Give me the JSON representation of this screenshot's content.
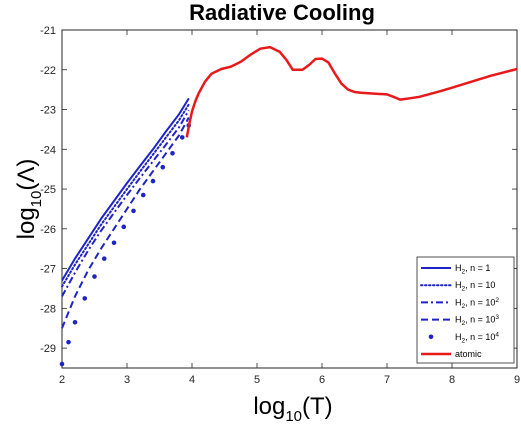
{
  "chart_data": {
    "type": "line",
    "title": "Radiative Cooling",
    "xlabel": {
      "prefix": "log",
      "sub": "10",
      "arg": "(T)"
    },
    "ylabel": {
      "prefix": "log",
      "sub": "10",
      "arg": "(Λ)"
    },
    "xlim": [
      2,
      9
    ],
    "ylim": [
      -29.5,
      -21
    ],
    "xticks": [
      2,
      3,
      4,
      5,
      6,
      7,
      8,
      9
    ],
    "yticks": [
      -21,
      -22,
      -23,
      -24,
      -25,
      -26,
      -27,
      -28,
      -29
    ],
    "grid": false,
    "legend_position": "bottom-right",
    "colors": {
      "h2": "#1f24c7",
      "atomic": "#e8191b",
      "axis": "#262626"
    },
    "series": [
      {
        "label": {
          "base": "H",
          "sub": "2",
          "text": ", n = 1",
          "sup": ""
        },
        "style": "solid",
        "color": "#1f24c7",
        "x": [
          2.0,
          2.2,
          2.4,
          2.6,
          2.8,
          3.0,
          3.2,
          3.4,
          3.6,
          3.8,
          3.95
        ],
        "y": [
          -27.3,
          -26.75,
          -26.25,
          -25.75,
          -25.3,
          -24.85,
          -24.42,
          -24.0,
          -23.55,
          -23.12,
          -22.72
        ]
      },
      {
        "label": {
          "base": "H",
          "sub": "2",
          "text": ", n = 10",
          "sup": ""
        },
        "style": "dotted",
        "color": "#1f24c7",
        "x": [
          2.0,
          2.2,
          2.4,
          2.6,
          2.8,
          3.0,
          3.2,
          3.4,
          3.6,
          3.8,
          3.95
        ],
        "y": [
          -27.45,
          -26.9,
          -26.4,
          -25.9,
          -25.45,
          -25.0,
          -24.56,
          -24.13,
          -23.7,
          -23.27,
          -22.87
        ]
      },
      {
        "label": {
          "base": "H",
          "sub": "2",
          "text": ", n = 10",
          "sup": "2"
        },
        "style": "dashdot",
        "color": "#1f24c7",
        "x": [
          2.0,
          2.2,
          2.4,
          2.6,
          2.8,
          3.0,
          3.2,
          3.4,
          3.6,
          3.8,
          3.95
        ],
        "y": [
          -27.7,
          -27.1,
          -26.55,
          -26.05,
          -25.6,
          -25.15,
          -24.72,
          -24.3,
          -23.88,
          -23.45,
          -23.02
        ]
      },
      {
        "label": {
          "base": "H",
          "sub": "2",
          "text": ", n = 10",
          "sup": "3"
        },
        "style": "dashed",
        "color": "#1f24c7",
        "x": [
          2.0,
          2.2,
          2.4,
          2.6,
          2.8,
          3.0,
          3.2,
          3.4,
          3.6,
          3.8,
          3.95
        ],
        "y": [
          -28.5,
          -27.7,
          -27.05,
          -26.5,
          -26.0,
          -25.5,
          -25.0,
          -24.55,
          -24.1,
          -23.65,
          -23.2
        ]
      },
      {
        "label": {
          "base": "H",
          "sub": "2",
          "text": ", n = 10",
          "sup": "4"
        },
        "style": "dots",
        "color": "#1f24c7",
        "x": [
          2.0,
          2.1,
          2.2,
          2.35,
          2.5,
          2.65,
          2.8,
          2.95,
          3.1,
          3.25,
          3.4,
          3.55,
          3.7,
          3.85,
          3.95
        ],
        "y": [
          -29.4,
          -28.85,
          -28.35,
          -27.75,
          -27.2,
          -26.75,
          -26.35,
          -25.95,
          -25.55,
          -25.15,
          -24.8,
          -24.45,
          -24.1,
          -23.7,
          -23.4
        ]
      },
      {
        "label": {
          "base": "atomic",
          "sub": "",
          "text": "",
          "sup": ""
        },
        "style": "solid-thick",
        "color": "#e8191b",
        "x": [
          3.92,
          3.96,
          4.0,
          4.05,
          4.1,
          4.2,
          4.3,
          4.45,
          4.6,
          4.75,
          4.9,
          5.05,
          5.2,
          5.35,
          5.45,
          5.55,
          5.7,
          5.8,
          5.9,
          6.0,
          6.1,
          6.2,
          6.3,
          6.4,
          6.5,
          6.6,
          6.8,
          7.0,
          7.1,
          7.2,
          7.3,
          7.5,
          7.8,
          8.0,
          8.3,
          8.6,
          9.0
        ],
        "y": [
          -23.7,
          -23.35,
          -23.05,
          -22.8,
          -22.6,
          -22.3,
          -22.1,
          -21.98,
          -21.92,
          -21.8,
          -21.62,
          -21.47,
          -21.43,
          -21.55,
          -21.75,
          -22.0,
          -22.0,
          -21.88,
          -21.73,
          -21.72,
          -21.82,
          -22.1,
          -22.35,
          -22.5,
          -22.56,
          -22.58,
          -22.6,
          -22.62,
          -22.68,
          -22.75,
          -22.73,
          -22.68,
          -22.55,
          -22.45,
          -22.3,
          -22.15,
          -21.98
        ]
      }
    ]
  }
}
